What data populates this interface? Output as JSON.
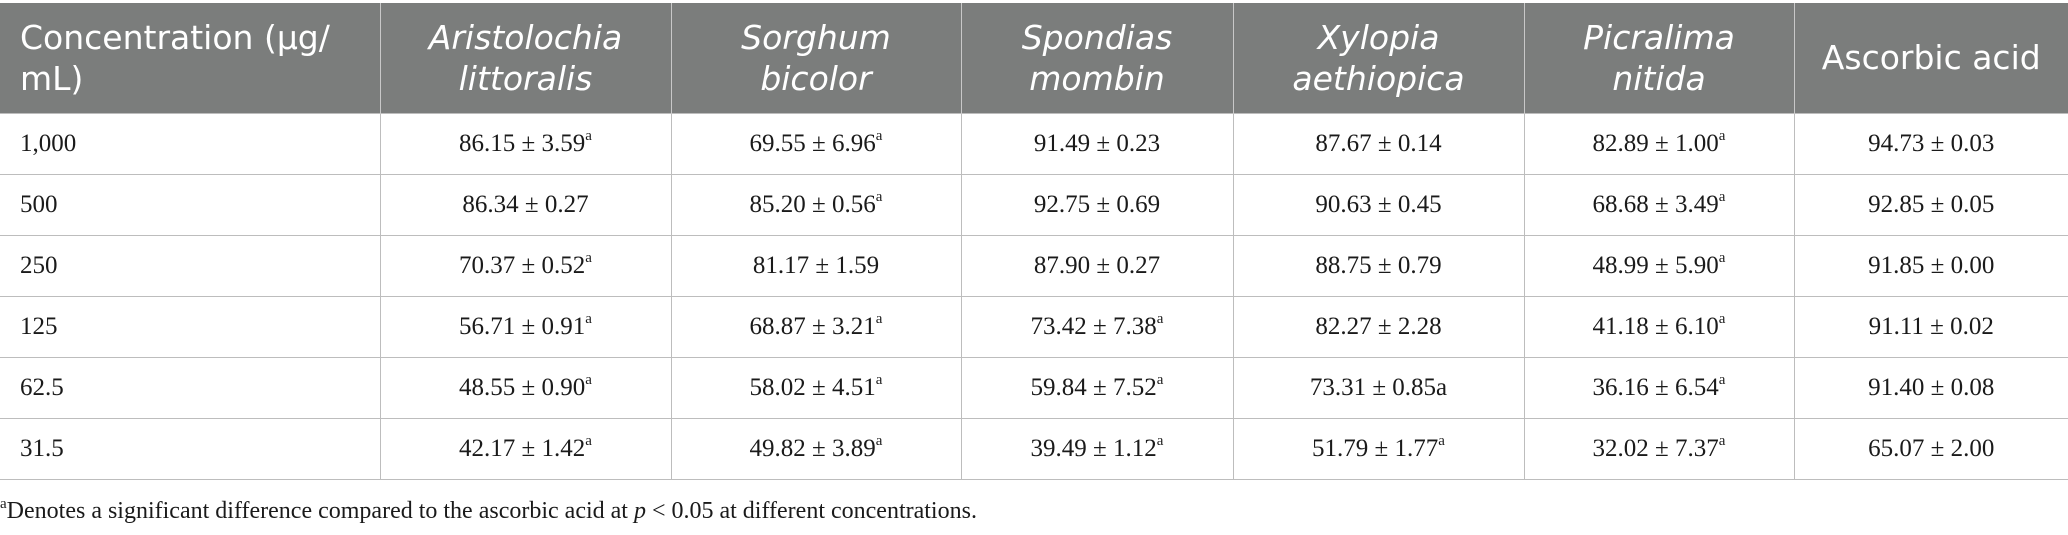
{
  "table": {
    "header": {
      "concentration": "Concentration (μg/ mL)",
      "col1": "Aristolochia littoralis",
      "col2": "Sorghum bicolor",
      "col3": "Spondias mombin",
      "col4": "Xylopia aethiopica",
      "col5": "Picralima nitida",
      "col6": "Ascorbic acid"
    },
    "rows": [
      {
        "conc": "1,000",
        "c1": "86.15 ± 3.59",
        "c1_sup": "a",
        "c2": "69.55 ± 6.96",
        "c2_sup": "a",
        "c3": "91.49 ± 0.23",
        "c3_sup": "",
        "c4": "87.67 ± 0.14",
        "c4_sup": "",
        "c5": "82.89 ± 1.00",
        "c5_sup": "a",
        "c6": "94.73 ± 0.03"
      },
      {
        "conc": "500",
        "c1": "86.34 ± 0.27",
        "c1_sup": "",
        "c2": "85.20 ± 0.56",
        "c2_sup": "a",
        "c3": "92.75 ± 0.69",
        "c3_sup": "",
        "c4": "90.63 ± 0.45",
        "c4_sup": "",
        "c5": "68.68 ± 3.49",
        "c5_sup": "a",
        "c6": "92.85 ± 0.05"
      },
      {
        "conc": "250",
        "c1": "70.37 ± 0.52",
        "c1_sup": "a",
        "c2": "81.17 ± 1.59",
        "c2_sup": "",
        "c3": "87.90 ± 0.27",
        "c3_sup": "",
        "c4": "88.75 ± 0.79",
        "c4_sup": "",
        "c5": "48.99 ± 5.90",
        "c5_sup": "a",
        "c6": "91.85 ± 0.00"
      },
      {
        "conc": "125",
        "c1": "56.71 ± 0.91",
        "c1_sup": "a",
        "c2": "68.87 ± 3.21",
        "c2_sup": "a",
        "c3": "73.42 ± 7.38",
        "c3_sup": "a",
        "c4": "82.27 ± 2.28",
        "c4_sup": "",
        "c5": "41.18 ± 6.10",
        "c5_sup": "a",
        "c6": "91.11 ± 0.02"
      },
      {
        "conc": "62.5",
        "c1": "48.55 ± 0.90",
        "c1_sup": "a",
        "c2": "58.02 ± 4.51",
        "c2_sup": "a",
        "c3": "59.84 ± 7.52",
        "c3_sup": "a",
        "c4": "73.31 ± 0.85a",
        "c4_sup": "",
        "c5": "36.16 ± 6.54",
        "c5_sup": "a",
        "c6": "91.40 ± 0.08"
      },
      {
        "conc": "31.5",
        "c1": "42.17 ± 1.42",
        "c1_sup": "a",
        "c2": "49.82 ± 3.89",
        "c2_sup": "a",
        "c3": "39.49 ± 1.12",
        "c3_sup": "a",
        "c4": "51.79 ± 1.77",
        "c4_sup": "a",
        "c5": "32.02 ± 7.37",
        "c5_sup": "a",
        "c6": "65.07 ± 2.00"
      }
    ]
  },
  "footnote": {
    "marker": "a",
    "text_before": "Denotes a significant difference compared to the ascorbic acid at ",
    "p_symbol": "p",
    "text_after": " < 0.05 at different concentrations."
  }
}
